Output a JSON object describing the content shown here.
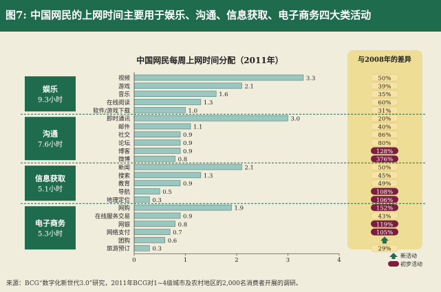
{
  "header": {
    "title": "图7: 中国网民的上网时间主要用于娱乐、沟通、信息获取、电子商务四大类活动"
  },
  "source_note": "来源：BCG“数字化新世代3.0”研究，2011年BCG对1~4级城市及农村地区的2,000名消费者开展的调研。",
  "colors": {
    "header_bg": "#1f6b4d",
    "page_bg": "#f1eddc",
    "category_box": "#1f6b4d",
    "bar_fill": "#9cc7c0",
    "bar_stroke": "#4a7f78",
    "badge_normal": "#f7e3a3",
    "badge_new": "#7a1f3d",
    "panel_bg": "#eedd95",
    "arrow": "#1f6b4d"
  },
  "chart_data": {
    "type": "bar",
    "orientation": "horizontal",
    "title": "中国网民每周上网时间分配（2011年）",
    "xlim": [
      0,
      4
    ],
    "x_ticks": [
      "0",
      "1",
      "2",
      "3",
      "4"
    ],
    "side_panel_title": "与2008年的差异",
    "groups": [
      {
        "name": "娱乐",
        "total": "9.3小时",
        "items": [
          {
            "label": "视频",
            "value": 3.3,
            "value_label": "3.3",
            "change": "50%",
            "type": "normal"
          },
          {
            "label": "游戏",
            "value": 2.1,
            "value_label": "2.1",
            "change": "39%",
            "type": "normal"
          },
          {
            "label": "音乐",
            "value": 1.6,
            "value_label": "1.6",
            "change": "35%",
            "type": "normal"
          },
          {
            "label": "在线阅读",
            "value": 1.3,
            "value_label": "1.3",
            "change": "60%",
            "type": "normal"
          },
          {
            "label": "软件/游戏下载",
            "value": 1.0,
            "value_label": "1.0",
            "change": "31%",
            "type": "normal"
          }
        ]
      },
      {
        "name": "沟通",
        "total": "7.6小时",
        "items": [
          {
            "label": "即时通讯",
            "value": 3.0,
            "value_label": "3.0",
            "change": "20%",
            "type": "normal"
          },
          {
            "label": "邮件",
            "value": 1.1,
            "value_label": "1.1",
            "change": "40%",
            "type": "normal"
          },
          {
            "label": "社交",
            "value": 0.9,
            "value_label": "0.9",
            "change": "86%",
            "type": "normal"
          },
          {
            "label": "论坛",
            "value": 0.9,
            "value_label": "0.9",
            "change": "80%",
            "type": "normal"
          },
          {
            "label": "博客",
            "value": 0.9,
            "value_label": "0.9",
            "change": "128%",
            "type": "new"
          },
          {
            "label": "微博",
            "value": 0.8,
            "value_label": "0.8",
            "change": "376%",
            "type": "new"
          }
        ]
      },
      {
        "name": "信息获取",
        "total": "5.1小时",
        "items": [
          {
            "label": "新闻",
            "value": 2.1,
            "value_label": "2.1",
            "change": "50%",
            "type": "normal"
          },
          {
            "label": "搜索",
            "value": 1.3,
            "value_label": "1.3",
            "change": "45%",
            "type": "normal"
          },
          {
            "label": "教育",
            "value": 0.9,
            "value_label": "0.9",
            "change": "49%",
            "type": "normal"
          },
          {
            "label": "导航",
            "value": 0.5,
            "value_label": "0.5",
            "change": "108%",
            "type": "new"
          },
          {
            "label": "地理定位",
            "value": 0.3,
            "value_label": "0.3",
            "change": "106%",
            "type": "new"
          }
        ]
      },
      {
        "name": "电子商务",
        "total": "5.3小时",
        "items": [
          {
            "label": "网购",
            "value": 1.9,
            "value_label": "1.9",
            "change": "152%",
            "type": "new"
          },
          {
            "label": "在线服务交易",
            "value": 0.9,
            "value_label": "0.9",
            "change": "43%",
            "type": "normal"
          },
          {
            "label": "网银",
            "value": 0.8,
            "value_label": "0.8",
            "change": "119%",
            "type": "new"
          },
          {
            "label": "网络支付",
            "value": 0.7,
            "value_label": "0.7",
            "change": "105%",
            "type": "new"
          },
          {
            "label": "团购",
            "value": 0.6,
            "value_label": "0.6",
            "change": "",
            "type": "arrow"
          },
          {
            "label": "旅游预订",
            "value": 0.3,
            "value_label": "0.3",
            "change": "29%",
            "type": "normal"
          }
        ]
      }
    ],
    "legend": [
      {
        "label": "新活动",
        "marker": "arrow"
      },
      {
        "label": "初步活动",
        "marker": "dark-badge"
      }
    ]
  }
}
